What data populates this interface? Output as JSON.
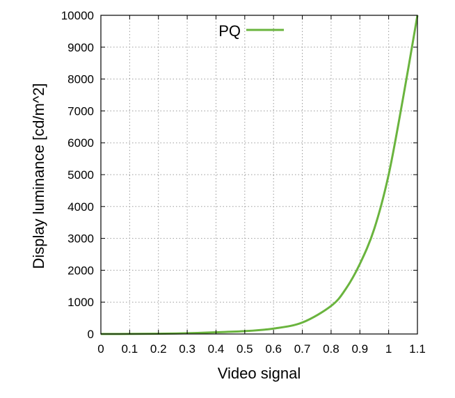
{
  "chart_data": {
    "type": "line",
    "title": "",
    "xlabel": "Video signal",
    "ylabel": "Display luminance [cd/m^2]",
    "xlim": [
      0,
      1.1
    ],
    "ylim": [
      0,
      10000
    ],
    "x_ticks": [
      0,
      0.1,
      0.2,
      0.3,
      0.4,
      0.5,
      0.6,
      0.7,
      0.8,
      0.9,
      1,
      1.1
    ],
    "x_tick_labels": [
      "0",
      "0.1",
      "0.2",
      "0.3",
      "0.4",
      "0.5",
      "0.6",
      "0.7",
      "0.8",
      "0.9",
      "1",
      "1.1"
    ],
    "y_ticks": [
      0,
      1000,
      2000,
      3000,
      4000,
      5000,
      6000,
      7000,
      8000,
      9000,
      10000
    ],
    "y_tick_labels": [
      "0",
      "1000",
      "2000",
      "3000",
      "4000",
      "5000",
      "6000",
      "7000",
      "8000",
      "9000",
      "10000"
    ],
    "grid": true,
    "legend_position": "top-center",
    "series": [
      {
        "name": "PQ",
        "color": "#6ab43e",
        "x": [
          0,
          0.1,
          0.2,
          0.3,
          0.4,
          0.5,
          0.6,
          0.7,
          0.8,
          0.85,
          0.9,
          0.95,
          1.0,
          1.05,
          1.1
        ],
        "y": [
          0,
          2,
          8,
          24,
          55,
          90,
          170,
          360,
          880,
          1400,
          2200,
          3300,
          5000,
          7400,
          10000
        ]
      }
    ]
  }
}
